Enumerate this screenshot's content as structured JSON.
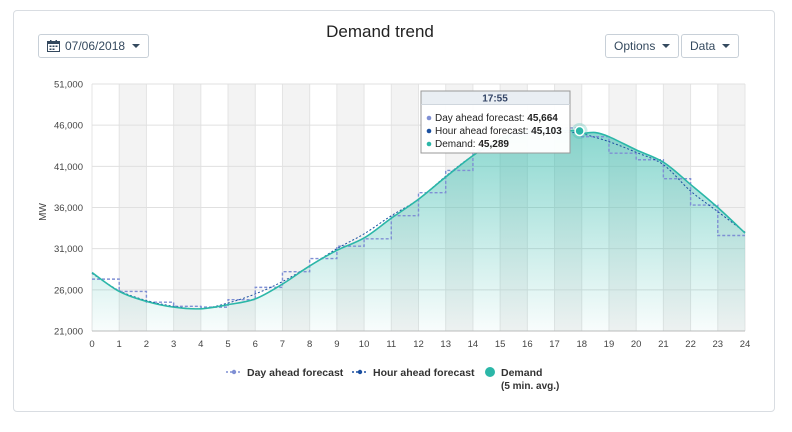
{
  "header": {
    "date_label": "07/06/2018",
    "title": "Demand trend",
    "options_label": "Options",
    "data_label": "Data"
  },
  "icons": {
    "date_button": "calendar-icon"
  },
  "colors": {
    "day_ahead": "#7f8fd4",
    "hour_ahead": "#1a4fa0",
    "demand": "#2bb7a8",
    "band": "#f3f3f3"
  },
  "chart_data": {
    "type": "line",
    "title": "Demand trend",
    "xlabel": "",
    "ylabel": "MW",
    "xlim": [
      0,
      24
    ],
    "ylim": [
      21000,
      51000
    ],
    "x_ticks": [
      "0",
      "1",
      "2",
      "3",
      "4",
      "5",
      "6",
      "7",
      "8",
      "9",
      "10",
      "11",
      "12",
      "13",
      "14",
      "15",
      "16",
      "17",
      "18",
      "19",
      "20",
      "21",
      "22",
      "23",
      "24"
    ],
    "y_ticks": [
      "21,000",
      "26,000",
      "31,000",
      "36,000",
      "41,000",
      "46,000",
      "51,000"
    ],
    "grid": true,
    "legend_position": "bottom",
    "legend": [
      {
        "name": "Day ahead forecast"
      },
      {
        "name": "Hour ahead forecast"
      },
      {
        "name": "Demand",
        "note": "(5 min. avg.)"
      }
    ],
    "series": [
      {
        "name": "Day ahead forecast",
        "style": "step",
        "x": [
          0,
          1,
          2,
          3,
          4,
          5,
          6,
          7,
          8,
          9,
          10,
          11,
          12,
          13,
          14,
          15,
          16,
          17,
          18,
          19,
          20,
          21,
          22,
          23,
          24
        ],
        "y": [
          27300,
          25800,
          24500,
          24000,
          23900,
          24800,
          26300,
          28200,
          29800,
          31300,
          32200,
          35000,
          37800,
          40500,
          43000,
          44800,
          45500,
          45664,
          44600,
          42600,
          41800,
          39500,
          36300,
          32600,
          32600
        ]
      },
      {
        "name": "Hour ahead forecast",
        "style": "line",
        "x": [
          0,
          1,
          2,
          3,
          4,
          5,
          6,
          7,
          8,
          9,
          10,
          11,
          12,
          13,
          14,
          15,
          16,
          17,
          17.92,
          18,
          19,
          20,
          21,
          22,
          23,
          24
        ],
        "y": [
          28000,
          25900,
          24700,
          24000,
          23700,
          24400,
          25500,
          27000,
          28900,
          31000,
          32800,
          35000,
          37000,
          39800,
          42300,
          44100,
          45000,
          45100,
          45103,
          45000,
          44000,
          42700,
          41200,
          38000,
          35500,
          33000
        ]
      },
      {
        "name": "Demand",
        "style": "area",
        "x": [
          0,
          1,
          2,
          3,
          4,
          5,
          6,
          7,
          8,
          9,
          10,
          11,
          12,
          13,
          14,
          15,
          16,
          17,
          17.92,
          18,
          18.5,
          19,
          20,
          21,
          22,
          23,
          24
        ],
        "y": [
          28100,
          25800,
          24600,
          23900,
          23700,
          24200,
          24900,
          26700,
          28900,
          30800,
          32300,
          34700,
          37000,
          39700,
          42300,
          44400,
          45200,
          45350,
          45289,
          45000,
          45100,
          44600,
          43000,
          41500,
          38800,
          36000,
          32900
        ]
      }
    ],
    "tooltip": {
      "time": "17:55",
      "x": 17.92,
      "items": [
        {
          "label": "Day ahead forecast: ",
          "value": "45,664"
        },
        {
          "label": "Hour ahead forecast: ",
          "value": "45,103"
        },
        {
          "label": "Demand: ",
          "value": "45,289"
        }
      ]
    }
  }
}
